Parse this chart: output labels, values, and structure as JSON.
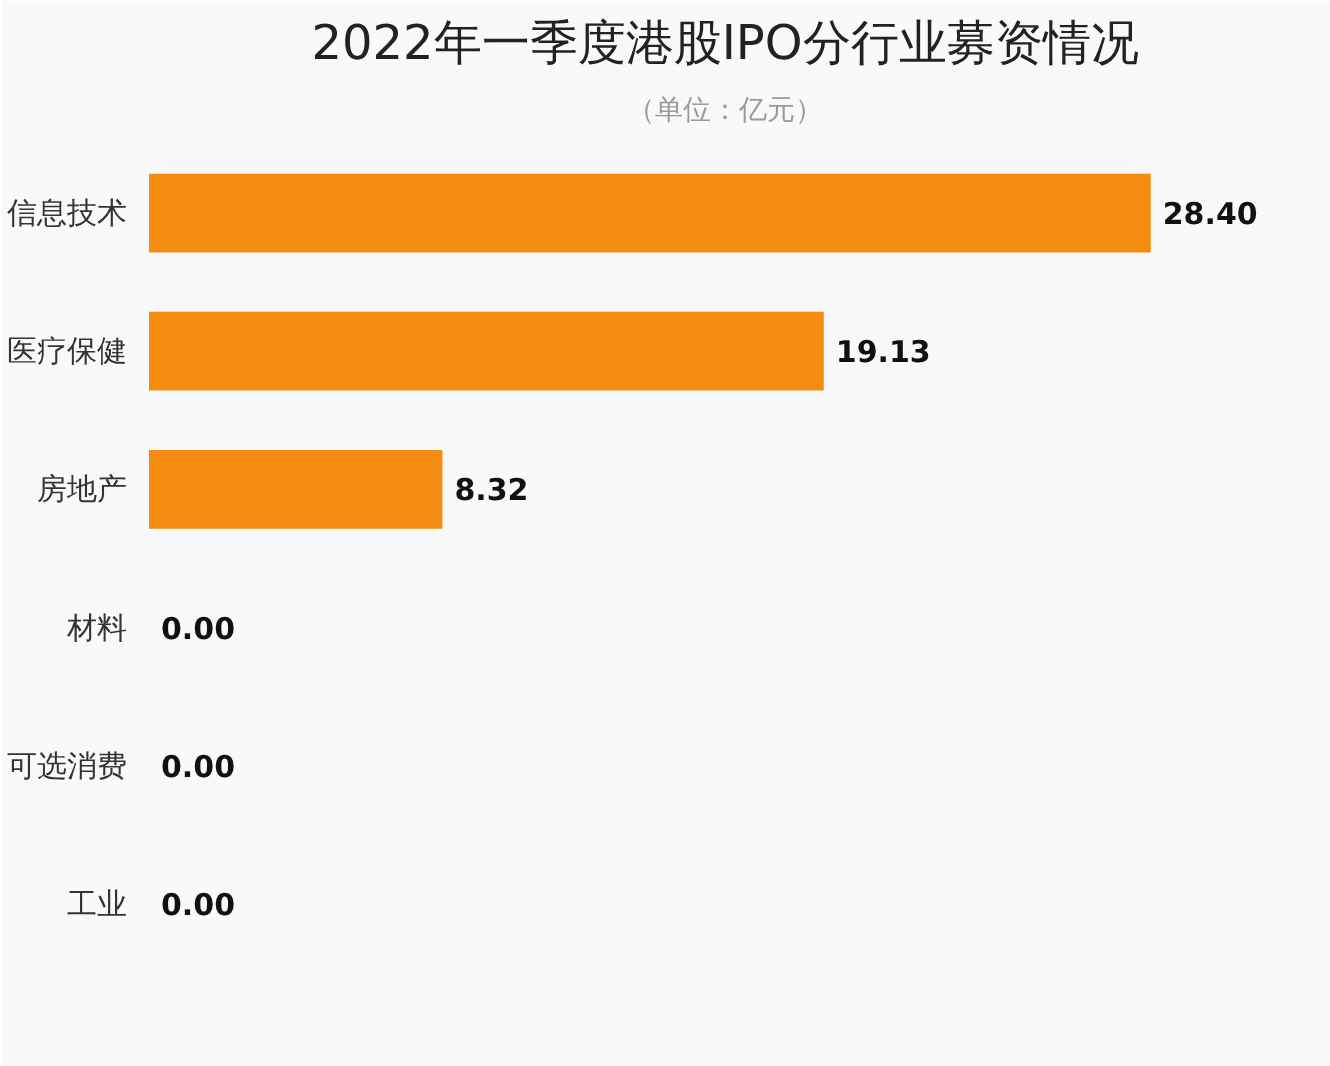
{
  "chart_data": {
    "type": "bar",
    "orientation": "horizontal",
    "title": "2022年一季度港股IPO分行业募资情况",
    "subtitle": "（单位：亿元）",
    "categories": [
      "信息技术",
      "医疗保健",
      "房地产",
      "材料",
      "可选消费",
      "工业"
    ],
    "values": [
      28.4,
      19.13,
      8.32,
      0.0,
      0.0,
      0.0
    ],
    "color": "#f68b12",
    "data_labels": true,
    "value_labels": [
      "28.40",
      "19.13",
      "8.32",
      "0.00",
      "0.00",
      "0.00"
    ],
    "grid": false
  }
}
